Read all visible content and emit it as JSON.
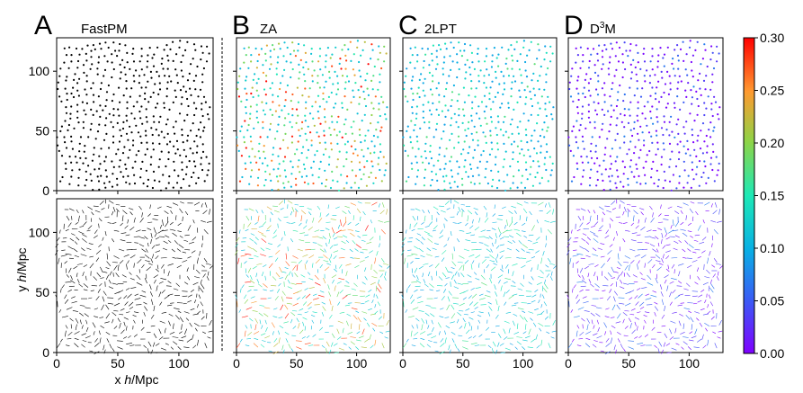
{
  "chart_data": {
    "type": "scatter",
    "description_panels": [
      {
        "letter": "A",
        "title": "FastPM"
      },
      {
        "letter": "B",
        "title": "ZA"
      },
      {
        "letter": "C",
        "title": "2LPT"
      },
      {
        "letter": "D",
        "title_base": "D",
        "title_sup": "3",
        "title_tail": "M"
      }
    ],
    "rows": [
      "particle positions",
      "displacement vectors"
    ],
    "xlabel_prefix": "x ",
    "xlabel_italic": "h",
    "xlabel_suffix": "/Mpc",
    "ylabel_prefix": "y ",
    "ylabel_italic": "h",
    "ylabel_suffix": "/Mpc",
    "xlim": [
      0,
      128
    ],
    "ylim": [
      0,
      128
    ],
    "x_ticks": [
      "0",
      "50",
      "100"
    ],
    "y_ticks": [
      "0",
      "50",
      "100"
    ],
    "colorbar": {
      "colormap": "rainbow",
      "range": [
        0.0,
        0.3
      ],
      "ticks": [
        "0.00",
        "0.05",
        "0.10",
        "0.15",
        "0.20",
        "0.25",
        "0.30"
      ]
    },
    "panel_colors": {
      "A": "#000000",
      "B": "cyan-to-red (high error)",
      "C": "cyan-green (medium error)",
      "D": "violet (low error)"
    }
  }
}
